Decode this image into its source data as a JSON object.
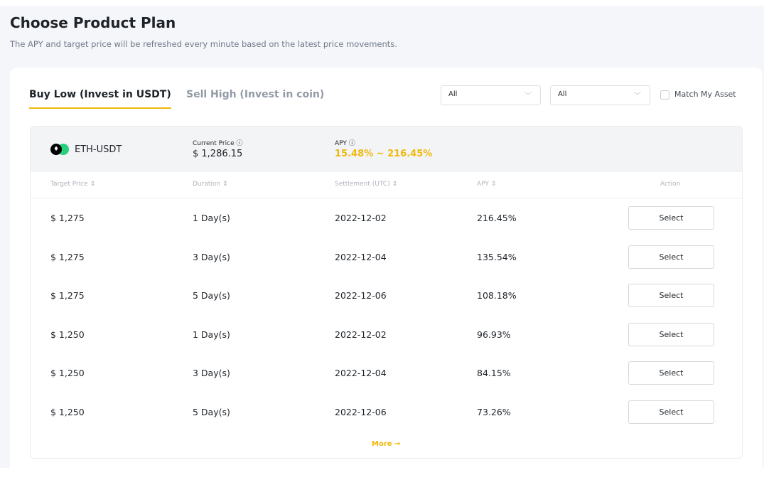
{
  "header": {
    "title": "Choose Product Plan",
    "subtitle": "The APY and target price will be refreshed every minute based on the latest price movements."
  },
  "tabs": [
    {
      "label": "Buy Low (Invest in USDT)",
      "active": true
    },
    {
      "label": "Sell High (Invest in coin)",
      "active": false
    }
  ],
  "filters": {
    "select1": "All",
    "select2": "All",
    "match_label": "Match My Asset",
    "match_checked": false
  },
  "product": {
    "pair": "ETH-USDT",
    "current_price_label": "Current Price",
    "current_price": "$ 1,286.15",
    "apy_label": "APY",
    "apy_range": "15.48% ~ 216.45%",
    "accent": "#f0b90b"
  },
  "table": {
    "headers": [
      "Target Price",
      "Duration",
      "Settlement (UTC)",
      "APY",
      "Action"
    ],
    "rows": [
      {
        "price": "$ 1,275",
        "duration": "1 Day(s)",
        "settlement": "2022-12-02",
        "apy": "216.45%",
        "action": "Select"
      },
      {
        "price": "$ 1,275",
        "duration": "3 Day(s)",
        "settlement": "2022-12-04",
        "apy": "135.54%",
        "action": "Select"
      },
      {
        "price": "$ 1,275",
        "duration": "5 Day(s)",
        "settlement": "2022-12-06",
        "apy": "108.18%",
        "action": "Select"
      },
      {
        "price": "$ 1,250",
        "duration": "1 Day(s)",
        "settlement": "2022-12-02",
        "apy": "96.93%",
        "action": "Select"
      },
      {
        "price": "$ 1,250",
        "duration": "3 Day(s)",
        "settlement": "2022-12-04",
        "apy": "84.15%",
        "action": "Select"
      },
      {
        "price": "$ 1,250",
        "duration": "5 Day(s)",
        "settlement": "2022-12-06",
        "apy": "73.26%",
        "action": "Select"
      }
    ]
  },
  "more_label": "More →"
}
